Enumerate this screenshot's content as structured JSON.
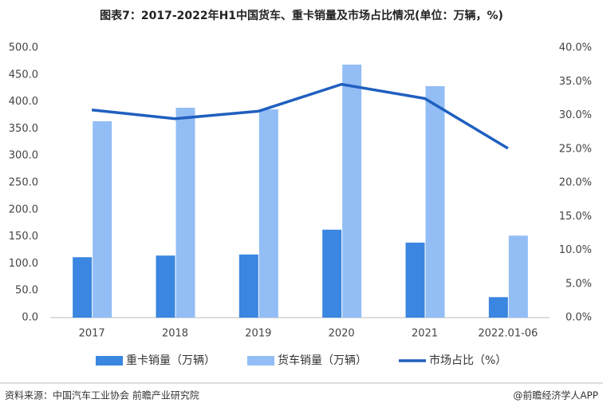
{
  "chart_data": {
    "type": "bar_line",
    "title": "图表7：2017-2022年H1中国货车、重卡销量及市场占比情况(单位：万辆，%)",
    "categories": [
      "2017",
      "2018",
      "2019",
      "2020",
      "2021",
      "2022.01-06"
    ],
    "series": [
      {
        "name": "重卡销量（万辆）",
        "type": "bar",
        "color": "#3a86e0",
        "values": [
          112,
          115,
          117,
          163,
          139,
          38
        ]
      },
      {
        "name": "货车销量（万辆）",
        "type": "bar",
        "color": "#93bdf5",
        "values": [
          364,
          389,
          386,
          469,
          429,
          152
        ]
      },
      {
        "name": "市场占比（%）",
        "type": "line",
        "axis": "y2",
        "color": "#1f5fbf",
        "values": [
          30.8,
          29.5,
          30.6,
          34.6,
          32.5,
          25.1
        ]
      }
    ],
    "ylim": [
      0,
      500
    ],
    "yticks": [
      {
        "value": 0,
        "label": "0.0"
      },
      {
        "value": 50,
        "label": "50.0"
      },
      {
        "value": 100,
        "label": "100.0"
      },
      {
        "value": 150,
        "label": "150.0"
      },
      {
        "value": 200,
        "label": "200.0"
      },
      {
        "value": 250,
        "label": "250.0"
      },
      {
        "value": 300,
        "label": "300.0"
      },
      {
        "value": 350,
        "label": "350.0"
      },
      {
        "value": 400,
        "label": "400.0"
      },
      {
        "value": 450,
        "label": "450.0"
      },
      {
        "value": 500,
        "label": "500.0"
      }
    ],
    "y2lim": [
      0,
      40
    ],
    "y2ticks": [
      {
        "value": 0,
        "label": "0.0%"
      },
      {
        "value": 5,
        "label": "5.0%"
      },
      {
        "value": 10,
        "label": "10.0%"
      },
      {
        "value": 15,
        "label": "15.0%"
      },
      {
        "value": 20,
        "label": "20.0%"
      },
      {
        "value": 25,
        "label": "25.0%"
      },
      {
        "value": 30,
        "label": "30.0%"
      },
      {
        "value": 35,
        "label": "35.0%"
      },
      {
        "value": 40,
        "label": "40.0%"
      }
    ],
    "source": "资料来源：中国汽车工业协会 前瞻产业研究院",
    "credit": "@前瞻经济学人APP"
  }
}
